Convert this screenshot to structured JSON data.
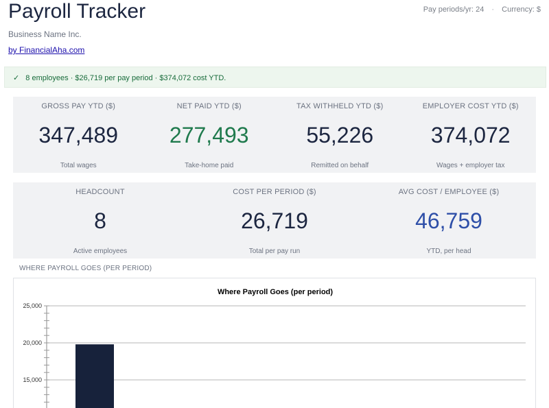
{
  "header": {
    "title": "Payroll Tracker",
    "business_name": "Business Name Inc.",
    "credit": "by FinancialAha.com",
    "pay_periods": "Pay periods/yr: 24",
    "separator": "·",
    "currency": "Currency: $"
  },
  "banner": {
    "check": "✓",
    "text": "8 employees · $26,719 per pay period · $374,072 cost YTD."
  },
  "kpis_row1": [
    {
      "label": "GROSS PAY YTD ($)",
      "value": "347,489",
      "sub": "Total wages",
      "color": "#1c2640"
    },
    {
      "label": "NET PAID YTD ($)",
      "value": "277,493",
      "sub": "Take-home paid",
      "color": "#1f7a4d"
    },
    {
      "label": "TAX WITHHELD YTD ($)",
      "value": "55,226",
      "sub": "Remitted on behalf",
      "color": "#1c2640"
    },
    {
      "label": "EMPLOYER COST YTD ($)",
      "value": "374,072",
      "sub": "Wages + employer tax",
      "color": "#1c2640"
    }
  ],
  "kpis_row2": [
    {
      "label": "HEADCOUNT",
      "value": "8",
      "sub": "Active employees",
      "color": "#1c2640"
    },
    {
      "label": "COST PER PERIOD ($)",
      "value": "26,719",
      "sub": "Total per pay run",
      "color": "#1c2640"
    },
    {
      "label": "AVG COST / EMPLOYEE ($)",
      "value": "46,759",
      "sub": "YTD, per head",
      "color": "#2e4fa8"
    }
  ],
  "section": {
    "heading": "WHERE PAYROLL GOES (PER PERIOD)"
  },
  "chart_data": {
    "type": "bar",
    "title": "Where Payroll Goes (per period)",
    "y_ticks": [
      "25,000",
      "20,000",
      "15,000"
    ],
    "ylim": [
      15000,
      25000
    ],
    "visible_values": [
      19800
    ],
    "bar_color": "#17223b",
    "grid": true
  }
}
